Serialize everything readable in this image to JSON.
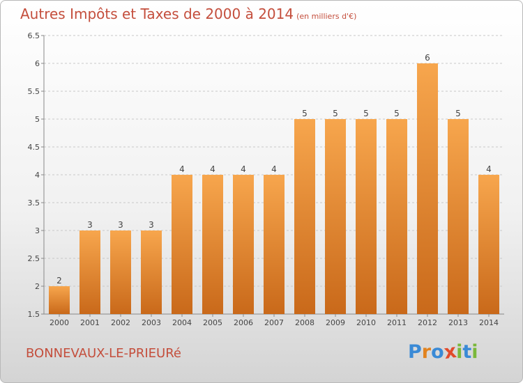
{
  "header": {
    "title": "Autres Impôts et Taxes de 2000 à 2014",
    "unit": "(en milliers d'€)"
  },
  "footer": {
    "city": "BONNEVAUX-LE-PRIEURé",
    "logo_text": "Proxiti"
  },
  "colors": {
    "title": "#c44e3c",
    "bar_light": "#f7a64d",
    "bar_dark": "#c9691a",
    "logo": [
      "#3a8ad6",
      "#e2831f",
      "#3a8ad6",
      "#e24a2b",
      "#7ab83a",
      "#3a8ad6",
      "#7ab83a"
    ]
  },
  "chart_data": {
    "type": "bar",
    "title": "Autres Impôts et Taxes de 2000 à 2014",
    "xlabel": "",
    "ylabel": "",
    "categories": [
      "2000",
      "2001",
      "2002",
      "2003",
      "2004",
      "2005",
      "2006",
      "2007",
      "2008",
      "2009",
      "2010",
      "2011",
      "2012",
      "2013",
      "2014"
    ],
    "values": [
      2,
      3,
      3,
      3,
      4,
      4,
      4,
      4,
      5,
      5,
      5,
      5,
      6,
      5,
      4
    ],
    "data_labels": [
      "2",
      "3",
      "3",
      "3",
      "4",
      "4",
      "4",
      "4",
      "5",
      "5",
      "5",
      "5",
      "6",
      "5",
      "4"
    ],
    "ylim": [
      1.5,
      6.5
    ],
    "yticks": [
      1.5,
      2,
      2.5,
      3,
      3.5,
      4,
      4.5,
      5,
      5.5,
      6,
      6.5
    ],
    "ytick_labels": [
      "1.5",
      "2",
      "2.5",
      "3",
      "3.5",
      "4",
      "4.5",
      "5",
      "5.5",
      "6",
      "6.5"
    ],
    "grid": "horizontal-dashed",
    "legend": "none"
  }
}
